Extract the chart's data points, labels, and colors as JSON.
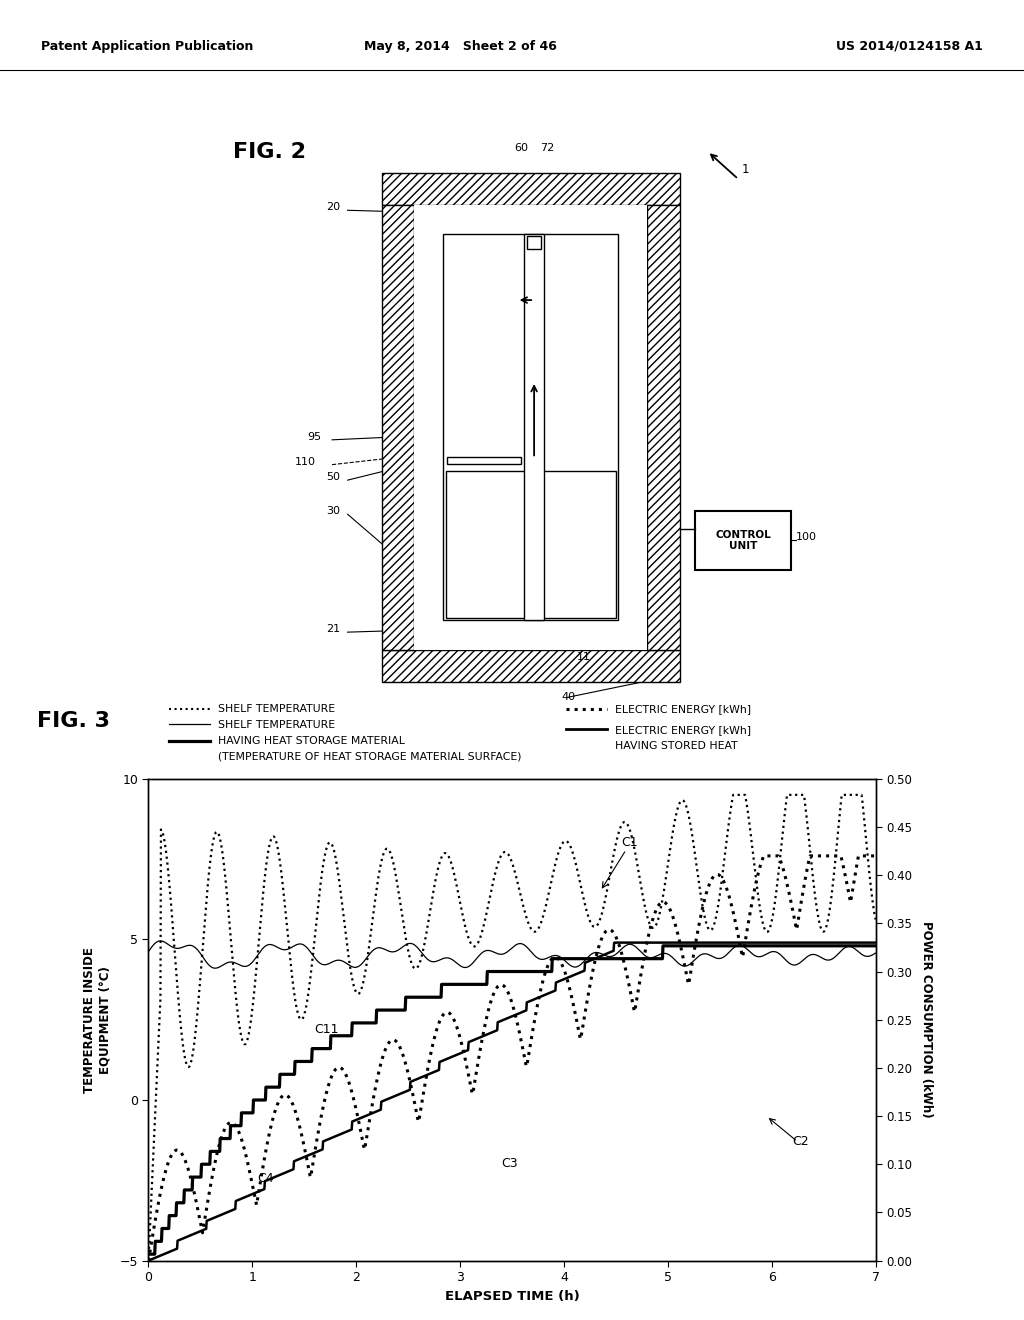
{
  "header_left": "Patent Application Publication",
  "header_center": "May 8, 2014   Sheet 2 of 46",
  "header_right": "US 2014/0124158 A1",
  "fig2_label": "FIG. 2",
  "fig3_label": "FIG. 3",
  "xlabel": "ELAPSED TIME (h)",
  "ylabel_left": "TEMPERATURE INSIDE\nEQUIPMENT (°C)",
  "ylabel_right": "POWER CONSUMPTION (kWh)",
  "xlim": [
    0,
    7
  ],
  "ylim_left": [
    -5,
    10
  ],
  "ylim_right": [
    0,
    0.5
  ],
  "xticks": [
    0,
    1,
    2,
    3,
    4,
    5,
    6,
    7
  ],
  "yticks_left": [
    -5,
    0,
    5,
    10
  ],
  "yticks_right": [
    0,
    0.05,
    0.1,
    0.15,
    0.2,
    0.25,
    0.3,
    0.35,
    0.4,
    0.45,
    0.5
  ],
  "background_color": "#ffffff"
}
